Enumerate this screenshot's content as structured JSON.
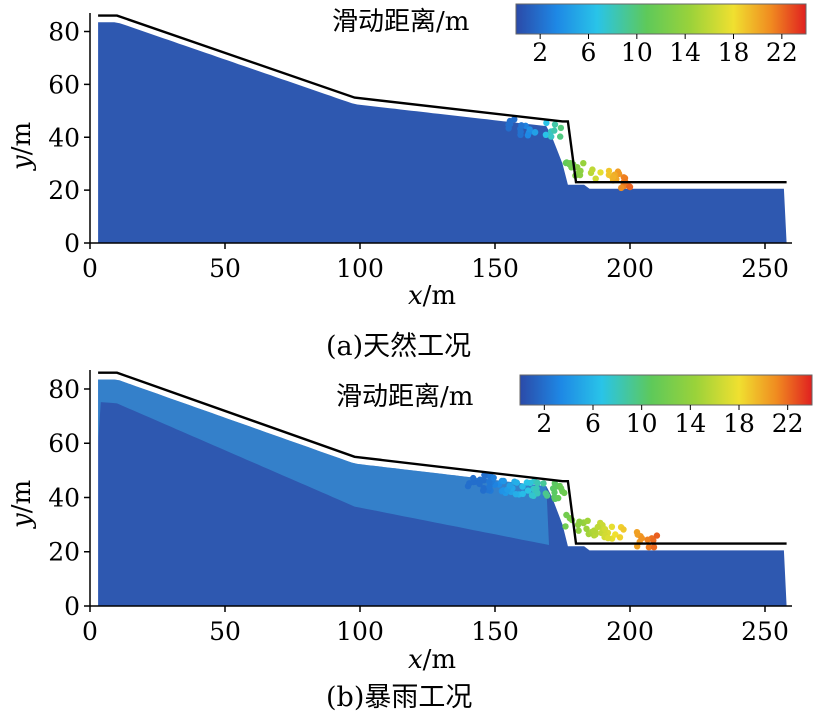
{
  "chart_data": [
    {
      "type": "heatmap",
      "subtype": "particle-scatter with slope profile",
      "caption": "(a)天然工况",
      "xlabel": "x/m",
      "ylabel": "y/m",
      "xlim": [
        0,
        260
      ],
      "ylim": [
        0,
        87
      ],
      "xticks": [
        0,
        50,
        100,
        150,
        200,
        250
      ],
      "yticks": [
        0,
        20,
        40,
        60,
        80
      ],
      "colorbar": {
        "title": "滑动距离/m",
        "ticks": [
          2,
          6,
          10,
          14,
          18,
          22
        ],
        "colors": [
          "#2b4aa8",
          "#1e88e5",
          "#29c4e8",
          "#5ec95a",
          "#9ad23a",
          "#f0e030",
          "#f08a20",
          "#e02020"
        ]
      },
      "slope_profile": {
        "x": [
          3,
          10,
          98,
          175,
          177,
          180,
          258
        ],
        "y": [
          86,
          86,
          55,
          46,
          46,
          23,
          23
        ]
      },
      "sliding_zone": {
        "x_range": [
          155,
          200
        ],
        "max_displacement": 22
      },
      "grid": false,
      "legend": "top-right"
    },
    {
      "type": "heatmap",
      "subtype": "particle-scatter with slope profile",
      "caption": "(b)暴雨工况",
      "xlabel": "x/m",
      "ylabel": "y/m",
      "xlim": [
        0,
        260
      ],
      "ylim": [
        0,
        87
      ],
      "xticks": [
        0,
        50,
        100,
        150,
        200,
        250
      ],
      "yticks": [
        0,
        20,
        40,
        60,
        80
      ],
      "colorbar": {
        "title": "滑动距离/m",
        "ticks": [
          2,
          6,
          10,
          14,
          18,
          22
        ],
        "colors": [
          "#2b4aa8",
          "#1e88e5",
          "#29c4e8",
          "#5ec95a",
          "#9ad23a",
          "#f0e030",
          "#f08a20",
          "#e02020"
        ]
      },
      "slope_profile": {
        "x": [
          3,
          10,
          98,
          175,
          177,
          180,
          258
        ],
        "y": [
          86,
          86,
          55,
          46,
          46,
          23,
          23
        ]
      },
      "sliding_zone": {
        "x_range": [
          140,
          210
        ],
        "max_displacement": 22
      },
      "grid": false,
      "legend": "top-right"
    }
  ]
}
